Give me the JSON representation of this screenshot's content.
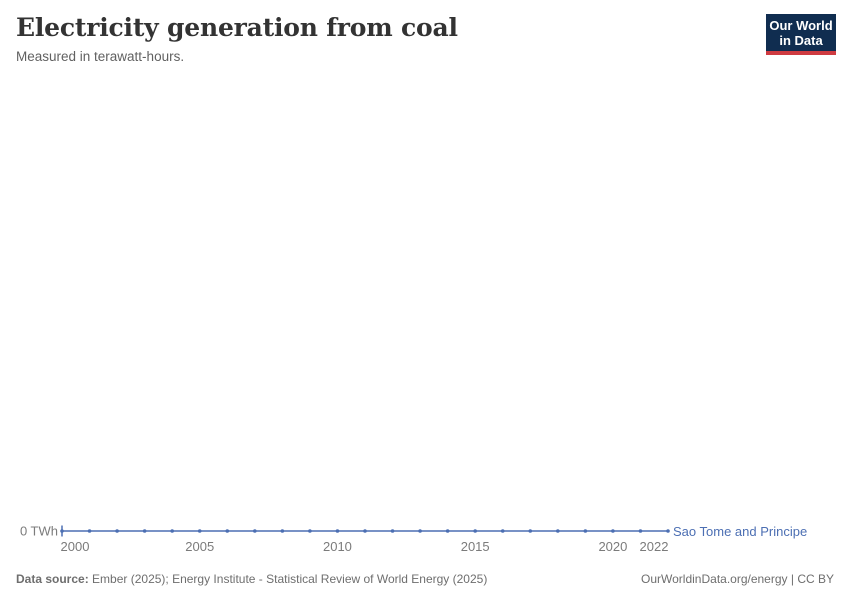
{
  "header": {
    "title": "Electricity generation from coal",
    "subtitle": "Measured in terawatt-hours.",
    "logo": {
      "line1": "Our World",
      "line2": "in Data",
      "bg_color": "#102d50",
      "accent_color": "#cf3b41"
    }
  },
  "chart_data": {
    "type": "line",
    "title": "Electricity generation from coal",
    "subtitle": "Measured in terawatt-hours.",
    "xlim": [
      2000,
      2022
    ],
    "ylim": [
      0,
      0
    ],
    "grid": false,
    "legend_position": "end-of-line",
    "x_ticks": [
      2000,
      2005,
      2010,
      2015,
      2020,
      2022
    ],
    "y_ticks": [
      {
        "value": 0,
        "label": "0 TWh"
      }
    ],
    "series": [
      {
        "name": "Sao Tome and Principe",
        "color": "#4c6fb3",
        "x": [
          2000,
          2001,
          2002,
          2003,
          2004,
          2005,
          2006,
          2007,
          2008,
          2009,
          2010,
          2011,
          2012,
          2013,
          2014,
          2015,
          2016,
          2017,
          2018,
          2019,
          2020,
          2021,
          2022
        ],
        "values": [
          0,
          0,
          0,
          0,
          0,
          0,
          0,
          0,
          0,
          0,
          0,
          0,
          0,
          0,
          0,
          0,
          0,
          0,
          0,
          0,
          0,
          0,
          0
        ]
      }
    ],
    "axis_text_color": "#7b7b7b"
  },
  "footer": {
    "source_prefix": "Data source:",
    "source_text": "Ember (2025); Energy Institute - Statistical Review of World Energy (2025)",
    "link_text": "OurWorldinData.org/energy | CC BY"
  }
}
